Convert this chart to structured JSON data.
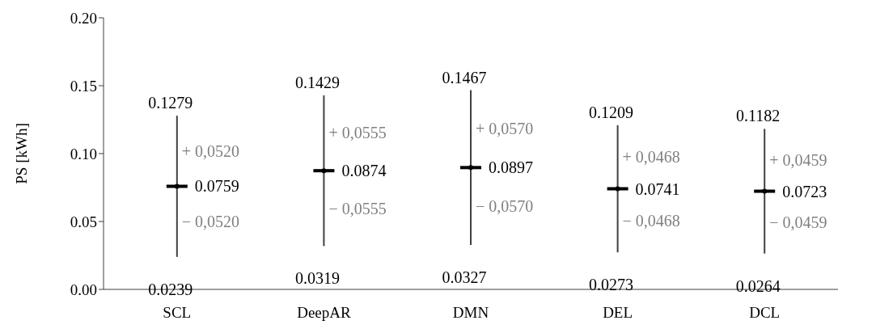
{
  "chart_data": {
    "type": "scatter",
    "ylabel": "PS [kWh]",
    "categories": [
      "SCL",
      "DeepAR",
      "DMN",
      "DEL",
      "DCL"
    ],
    "values": [
      0.0759,
      0.0874,
      0.0897,
      0.0741,
      0.0723
    ],
    "errors": [
      0.052,
      0.0555,
      0.057,
      0.0468,
      0.0459
    ],
    "color": "#000000",
    "data_labels": true,
    "ylim": [
      0,
      0.2
    ],
    "yticks": [
      {
        "value": 0,
        "label": "0.00"
      },
      0.05,
      {
        "value": 0.1,
        "label": "0.10"
      },
      0.15,
      {
        "value": 0.2,
        "label": "0.20"
      }
    ],
    "grid": false,
    "annotations": [
      {
        "text": "0.1279",
        "x": "SCL",
        "y": 0.1279
      },
      {
        "text": "+ 0,0520",
        "x": "SCL",
        "y": 0.1019
      },
      {
        "text": "− 0,0520",
        "x": "SCL",
        "y": 0.0499
      },
      {
        "text": "0.0239",
        "x": "SCL",
        "y": 0.0239
      },
      {
        "text": "0.1429",
        "x": "DeepAR",
        "y": 0.1429
      },
      {
        "text": "+ 0,0555",
        "x": "DeepAR",
        "y": 0.1152
      },
      {
        "text": "− 0,0555",
        "x": "DeepAR",
        "y": 0.0597
      },
      {
        "text": "0.0319",
        "x": "DeepAR",
        "y": 0.0319
      },
      {
        "text": "0.1467",
        "x": "DMN",
        "y": 0.1467
      },
      {
        "text": "+ 0,0570",
        "x": "DMN",
        "y": 0.1182
      },
      {
        "text": "− 0,0570",
        "x": "DMN",
        "y": 0.0612
      },
      {
        "text": "0.0327",
        "x": "DMN",
        "y": 0.0327
      },
      {
        "text": "0.1209",
        "x": "DEL",
        "y": 0.1209
      },
      {
        "text": "+ 0,0468",
        "x": "DEL",
        "y": 0.0975
      },
      {
        "text": "− 0,0468",
        "x": "DEL",
        "y": 0.0507
      },
      {
        "text": "0.0273",
        "x": "DEL",
        "y": 0.0273
      },
      {
        "text": "0.1182",
        "x": "DCL",
        "y": 0.1182
      },
      {
        "text": "+ 0,0459",
        "x": "DCL",
        "y": 0.0953
      },
      {
        "text": "− 0,0459",
        "x": "DCL",
        "y": 0.0494
      },
      {
        "text": "0.0264",
        "x": "DCL",
        "y": 0.0264
      }
    ]
  }
}
